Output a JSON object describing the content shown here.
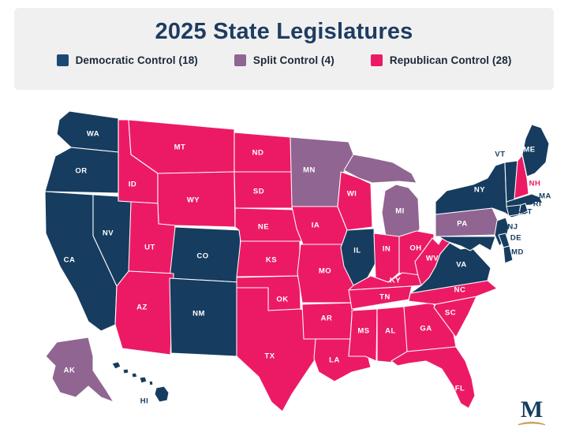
{
  "header": {
    "title": "2025 State Legislatures"
  },
  "legend": {
    "items": [
      {
        "key": "dem",
        "label": "Democratic Control (18)"
      },
      {
        "key": "split",
        "label": "Split Control (4)"
      },
      {
        "key": "rep",
        "label": "Republican Control (28)"
      }
    ]
  },
  "colors": {
    "dem": "#163C5F",
    "split": "#906592",
    "rep": "#EC1A64",
    "legend_dem": "#1A4A72",
    "header_bg": "#F0F0F1",
    "title_text": "#1E3C5F",
    "legend_text": "#1B2838",
    "state_label": "#FFFFFF",
    "border": "#FFFFFF",
    "logo_navy": "#163C5F",
    "logo_gold": "#C9A15B"
  },
  "map": {
    "states": [
      {
        "abbr": "WA",
        "control": "dem"
      },
      {
        "abbr": "OR",
        "control": "dem"
      },
      {
        "abbr": "CA",
        "control": "dem"
      },
      {
        "abbr": "NV",
        "control": "dem"
      },
      {
        "abbr": "ID",
        "control": "rep"
      },
      {
        "abbr": "MT",
        "control": "rep"
      },
      {
        "abbr": "WY",
        "control": "rep"
      },
      {
        "abbr": "UT",
        "control": "rep"
      },
      {
        "abbr": "CO",
        "control": "dem"
      },
      {
        "abbr": "AZ",
        "control": "rep"
      },
      {
        "abbr": "NM",
        "control": "dem"
      },
      {
        "abbr": "ND",
        "control": "rep"
      },
      {
        "abbr": "SD",
        "control": "rep"
      },
      {
        "abbr": "NE",
        "control": "rep"
      },
      {
        "abbr": "KS",
        "control": "rep"
      },
      {
        "abbr": "OK",
        "control": "rep"
      },
      {
        "abbr": "TX",
        "control": "rep"
      },
      {
        "abbr": "MN",
        "control": "split"
      },
      {
        "abbr": "IA",
        "control": "rep"
      },
      {
        "abbr": "MO",
        "control": "rep"
      },
      {
        "abbr": "AR",
        "control": "rep"
      },
      {
        "abbr": "LA",
        "control": "rep"
      },
      {
        "abbr": "WI",
        "control": "rep"
      },
      {
        "abbr": "IL",
        "control": "dem"
      },
      {
        "abbr": "MI",
        "control": "split"
      },
      {
        "abbr": "IN",
        "control": "rep"
      },
      {
        "abbr": "OH",
        "control": "rep"
      },
      {
        "abbr": "KY",
        "control": "rep"
      },
      {
        "abbr": "TN",
        "control": "rep"
      },
      {
        "abbr": "MS",
        "control": "rep"
      },
      {
        "abbr": "AL",
        "control": "rep"
      },
      {
        "abbr": "GA",
        "control": "rep"
      },
      {
        "abbr": "FL",
        "control": "rep"
      },
      {
        "abbr": "SC",
        "control": "rep"
      },
      {
        "abbr": "NC",
        "control": "rep"
      },
      {
        "abbr": "VA",
        "control": "dem"
      },
      {
        "abbr": "WV",
        "control": "rep"
      },
      {
        "abbr": "PA",
        "control": "split"
      },
      {
        "abbr": "NY",
        "control": "dem"
      },
      {
        "abbr": "NJ",
        "control": "dem"
      },
      {
        "abbr": "DE",
        "control": "dem"
      },
      {
        "abbr": "MD",
        "control": "dem"
      },
      {
        "abbr": "VT",
        "control": "dem"
      },
      {
        "abbr": "NH",
        "control": "rep"
      },
      {
        "abbr": "ME",
        "control": "dem"
      },
      {
        "abbr": "MA",
        "control": "dem"
      },
      {
        "abbr": "CT",
        "control": "dem"
      },
      {
        "abbr": "RI",
        "control": "dem"
      },
      {
        "abbr": "AK",
        "control": "split"
      },
      {
        "abbr": "HI",
        "control": "dem"
      }
    ],
    "outside_labeled": [
      "VT",
      "NH",
      "MA",
      "RI",
      "CT",
      "NJ",
      "DE",
      "MD",
      "HI"
    ]
  },
  "chart_data": {
    "type": "table",
    "title": "2025 State Legislatures",
    "categories": [
      "Democratic Control",
      "Split Control",
      "Republican Control"
    ],
    "values": [
      18,
      4,
      28
    ],
    "series": [
      {
        "name": "Democratic Control",
        "states": [
          "WA",
          "OR",
          "CA",
          "NV",
          "CO",
          "NM",
          "IL",
          "HI",
          "ME",
          "VT",
          "NY",
          "MA",
          "RI",
          "CT",
          "NJ",
          "DE",
          "MD",
          "VA"
        ]
      },
      {
        "name": "Split Control",
        "states": [
          "MN",
          "MI",
          "PA",
          "AK"
        ]
      },
      {
        "name": "Republican Control",
        "states": [
          "MT",
          "ID",
          "WY",
          "UT",
          "AZ",
          "ND",
          "SD",
          "NE",
          "KS",
          "OK",
          "TX",
          "IA",
          "WI",
          "MO",
          "AR",
          "LA",
          "MS",
          "AL",
          "GA",
          "FL",
          "SC",
          "NC",
          "TN",
          "KY",
          "WV",
          "OH",
          "IN",
          "NH"
        ]
      }
    ]
  },
  "logo": {
    "letter": "M"
  }
}
